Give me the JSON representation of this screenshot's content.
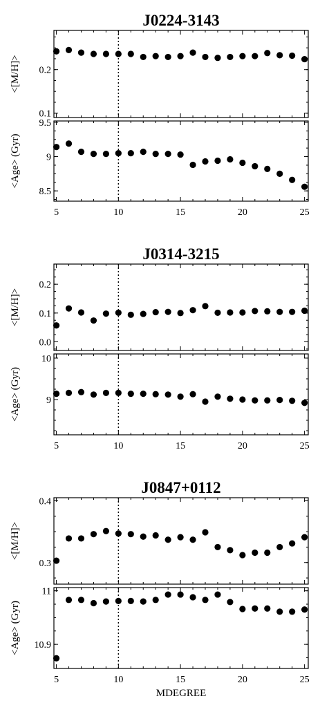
{
  "chart_data": [
    {
      "type": "scatter",
      "title": "J0224-3143",
      "xlabel": "",
      "xlim": [
        4.8,
        25.3
      ],
      "xticks": [
        5,
        10,
        15,
        20,
        25
      ],
      "vline_x": 10,
      "panels": [
        {
          "ylabel": "<[M/H]>",
          "ylim": [
            0.09,
            0.29
          ],
          "yticks": [
            0.1,
            0.2
          ],
          "x": [
            5,
            6,
            7,
            8,
            9,
            10,
            11,
            12,
            13,
            14,
            15,
            16,
            17,
            18,
            19,
            20,
            21,
            22,
            23,
            24,
            25
          ],
          "values": [
            0.242,
            0.245,
            0.239,
            0.236,
            0.236,
            0.236,
            0.236,
            0.229,
            0.231,
            0.229,
            0.231,
            0.239,
            0.229,
            0.227,
            0.229,
            0.231,
            0.231,
            0.238,
            0.233,
            0.232,
            0.224
          ]
        },
        {
          "ylabel": "<Age> (Gyr)",
          "ylim": [
            8.35,
            9.52
          ],
          "yticks": [
            8.5,
            9.0,
            9.5
          ],
          "x": [
            5,
            6,
            7,
            8,
            9,
            10,
            11,
            12,
            13,
            14,
            15,
            16,
            17,
            18,
            19,
            20,
            21,
            22,
            23,
            24,
            25
          ],
          "values": [
            9.14,
            9.19,
            9.07,
            9.04,
            9.04,
            9.05,
            9.05,
            9.07,
            9.04,
            9.04,
            9.03,
            8.88,
            8.93,
            8.94,
            8.96,
            8.91,
            8.86,
            8.82,
            8.75,
            8.66,
            8.56
          ]
        }
      ]
    },
    {
      "type": "scatter",
      "title": "J0314-3215",
      "xlabel": "",
      "xlim": [
        4.8,
        25.3
      ],
      "xticks": [
        5,
        10,
        15,
        20,
        25
      ],
      "vline_x": 10,
      "panels": [
        {
          "ylabel": "<[M/H]>",
          "ylim": [
            -0.03,
            0.27
          ],
          "yticks": [
            0.0,
            0.1,
            0.2
          ],
          "x": [
            5,
            6,
            7,
            8,
            9,
            10,
            11,
            12,
            13,
            14,
            15,
            16,
            17,
            18,
            19,
            20,
            21,
            22,
            23,
            24,
            25
          ],
          "values": [
            0.057,
            0.116,
            0.102,
            0.074,
            0.098,
            0.101,
            0.094,
            0.097,
            0.103,
            0.104,
            0.1,
            0.11,
            0.124,
            0.101,
            0.102,
            0.102,
            0.107,
            0.106,
            0.104,
            0.104,
            0.108
          ]
        },
        {
          "ylabel": "<Age> (Gyr)",
          "ylim": [
            8.15,
            10.1
          ],
          "yticks": [
            9,
            10
          ],
          "x": [
            5,
            6,
            7,
            8,
            9,
            10,
            11,
            12,
            13,
            14,
            15,
            16,
            17,
            18,
            19,
            20,
            21,
            22,
            23,
            24,
            25
          ],
          "values": [
            9.14,
            9.16,
            9.18,
            9.12,
            9.16,
            9.16,
            9.14,
            9.14,
            9.13,
            9.12,
            9.07,
            9.13,
            8.95,
            9.07,
            9.02,
            9.0,
            8.98,
            8.98,
            8.99,
            8.97,
            8.92
          ]
        }
      ]
    },
    {
      "type": "scatter",
      "title": "J0847+0112",
      "xlabel": "MDEGREE",
      "xlim": [
        4.8,
        25.3
      ],
      "xticks": [
        5,
        10,
        15,
        20,
        25
      ],
      "vline_x": 10,
      "panels": [
        {
          "ylabel": "<[M/H]>",
          "ylim": [
            0.265,
            0.405
          ],
          "yticks": [
            0.3,
            0.4
          ],
          "x": [
            5,
            6,
            7,
            8,
            9,
            10,
            11,
            12,
            13,
            14,
            15,
            16,
            17,
            18,
            19,
            20,
            21,
            22,
            23,
            24,
            25
          ],
          "values": [
            0.303,
            0.339,
            0.339,
            0.346,
            0.351,
            0.347,
            0.346,
            0.342,
            0.344,
            0.337,
            0.341,
            0.337,
            0.349,
            0.325,
            0.32,
            0.312,
            0.316,
            0.316,
            0.325,
            0.331,
            0.341
          ]
        },
        {
          "ylabel": "<Age> (Gyr)",
          "ylim": [
            10.855,
            11.006
          ],
          "yticks": [
            10.9,
            11.0
          ],
          "x": [
            5,
            6,
            7,
            8,
            9,
            10,
            11,
            12,
            13,
            14,
            15,
            16,
            17,
            18,
            19,
            20,
            21,
            22,
            23,
            24,
            25
          ],
          "values": [
            10.874,
            10.983,
            10.983,
            10.977,
            10.98,
            10.981,
            10.981,
            10.98,
            10.983,
            10.993,
            10.993,
            10.988,
            10.983,
            10.993,
            10.979,
            10.966,
            10.967,
            10.967,
            10.961,
            10.961,
            10.965
          ]
        }
      ]
    }
  ]
}
